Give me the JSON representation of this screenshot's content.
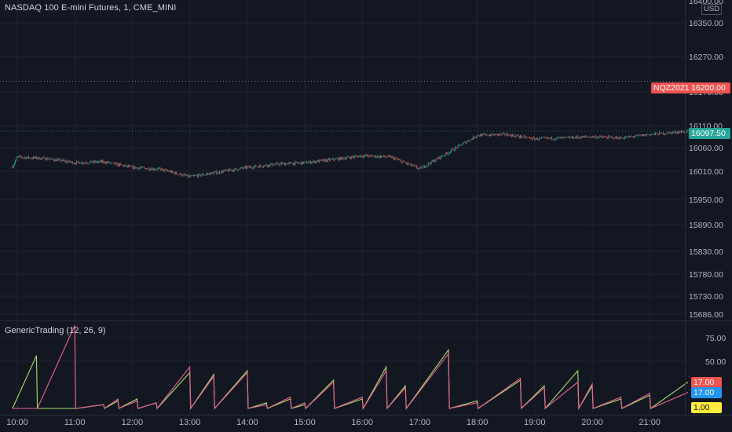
{
  "symbol_title": "NASDAQ 100 E-mini Futures, 1, CME_MINI",
  "currency": "USD",
  "indicator_title": "GenericTrading (12, 26, 9)",
  "price_axis": [
    "16400.00",
    "16350.00",
    "16270.00",
    "16170.00",
    "16110.00",
    "16060.00",
    "16010.00",
    "15950.00",
    "15890.00",
    "15830.00",
    "15780.00",
    "15730.00",
    "15686.00"
  ],
  "indicator_axis": [
    "75.00",
    "50.00"
  ],
  "time_axis": [
    "10:00",
    "11:00",
    "12:00",
    "13:00",
    "14:00",
    "15:00",
    "16:00",
    "17:00",
    "18:00",
    "19:00",
    "20:00",
    "21:00"
  ],
  "labels": {
    "contract_name": "NQZ2021",
    "contract_price": "16200.00",
    "last_price": "16097.50",
    "ind_red": "17.00",
    "ind_blue": "17.00",
    "ind_yellow": "1.00"
  },
  "colors": {
    "background": "#131722",
    "grid": "#1f2330",
    "up": "#26a69a",
    "down": "#ef5350",
    "green_line": "#a5e06b",
    "pink_line": "#f06292",
    "blue_tag": "#2196f3",
    "yellow_tag": "#ffeb3b"
  },
  "chart_data": [
    {
      "type": "candlestick",
      "title": "NASDAQ 100 E-mini Futures, 1, CME_MINI",
      "x": [
        "09:55",
        "10:00",
        "10:30",
        "11:00",
        "11:30",
        "12:00",
        "12:30",
        "13:00",
        "13:30",
        "14:00",
        "14:30",
        "15:00",
        "15:30",
        "16:00",
        "16:30",
        "17:00",
        "17:30",
        "18:00",
        "18:30",
        "19:00",
        "19:30",
        "20:00",
        "20:30",
        "21:00",
        "21:40"
      ],
      "close": [
        16020,
        16040,
        16037,
        16028,
        16030,
        16018,
        16014,
        15998,
        16008,
        16018,
        16025,
        16028,
        16035,
        16043,
        16040,
        16015,
        16050,
        16088,
        16090,
        16080,
        16082,
        16085,
        16082,
        16090,
        16097.5
      ],
      "ylim": [
        15686,
        16400
      ],
      "reference_line": {
        "name": "NQZ2021",
        "value": 16200.0
      },
      "last_price": 16097.5
    },
    {
      "type": "line",
      "title": "GenericTrading (12, 26, 9)",
      "ylim": [
        0,
        90
      ],
      "series": [
        {
          "color": "#a5e06b",
          "x": [
            "09:55",
            "10:20",
            "10:21",
            "11:00",
            "11:02",
            "11:30",
            "11:31",
            "11:45",
            "11:46",
            "12:05",
            "12:06",
            "12:25",
            "12:26",
            "13:00",
            "13:01",
            "13:25",
            "13:26",
            "14:00",
            "14:01",
            "14:20",
            "14:21",
            "14:45",
            "14:46",
            "15:00",
            "15:01",
            "15:30",
            "15:31",
            "16:00",
            "16:01",
            "16:25",
            "16:26",
            "16:45",
            "16:46",
            "17:30",
            "17:31",
            "18:00",
            "18:01",
            "18:45",
            "18:46",
            "19:10",
            "19:11",
            "19:45",
            "19:46",
            "20:00",
            "20:01",
            "20:30",
            "20:31",
            "21:00",
            "21:01",
            "21:40"
          ],
          "values": [
            0,
            56,
            0,
            0,
            0,
            4,
            0,
            8,
            0,
            10,
            0,
            6,
            0,
            38,
            0,
            36,
            0,
            40,
            0,
            6,
            0,
            10,
            0,
            4,
            0,
            30,
            0,
            10,
            0,
            44,
            0,
            24,
            0,
            62,
            0,
            8,
            0,
            30,
            0,
            24,
            0,
            40,
            0,
            24,
            0,
            10,
            0,
            14,
            0,
            28
          ]
        },
        {
          "color": "#f06292",
          "x": [
            "09:55",
            "10:20",
            "10:21",
            "11:00",
            "11:01",
            "11:30",
            "11:31",
            "11:45",
            "11:46",
            "12:05",
            "12:06",
            "12:25",
            "12:26",
            "13:00",
            "13:01",
            "13:25",
            "13:26",
            "14:00",
            "14:01",
            "14:20",
            "14:21",
            "14:45",
            "14:46",
            "15:00",
            "15:01",
            "15:30",
            "15:31",
            "16:00",
            "16:01",
            "16:25",
            "16:26",
            "16:45",
            "16:46",
            "17:30",
            "17:31",
            "18:00",
            "18:01",
            "18:45",
            "18:46",
            "19:10",
            "19:11",
            "19:45",
            "19:46",
            "20:00",
            "20:01",
            "20:30",
            "20:31",
            "21:00",
            "21:01",
            "21:40"
          ],
          "values": [
            0,
            0,
            0,
            88,
            0,
            4,
            0,
            10,
            0,
            8,
            0,
            6,
            0,
            44,
            0,
            34,
            0,
            38,
            0,
            4,
            0,
            12,
            0,
            6,
            0,
            28,
            0,
            12,
            0,
            40,
            0,
            22,
            0,
            58,
            0,
            6,
            0,
            32,
            0,
            22,
            0,
            28,
            0,
            26,
            0,
            12,
            0,
            16,
            0,
            17
          ]
        }
      ]
    }
  ]
}
